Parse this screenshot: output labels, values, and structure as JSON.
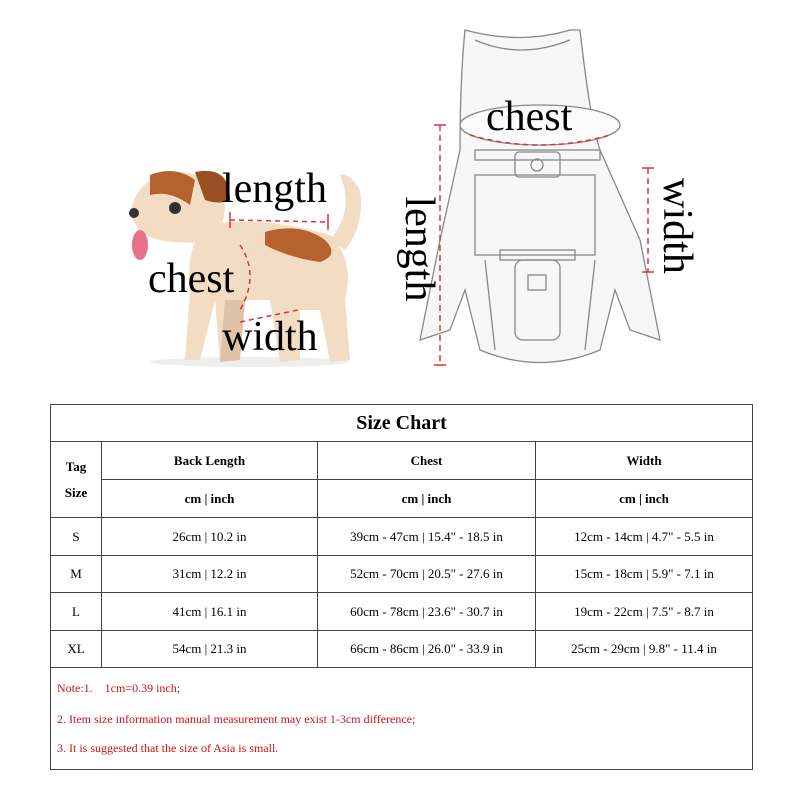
{
  "illustrations": {
    "dog_labels": {
      "length": "length",
      "chest": "chest",
      "width": "width"
    },
    "backpack_labels": {
      "chest": "chest",
      "length": "length",
      "width": "width"
    },
    "measure_line_color": "#e0303a"
  },
  "size_chart": {
    "title": "Size Chart",
    "tag_header": [
      "Tag",
      "Size"
    ],
    "columns": [
      "Back Length",
      "Chest",
      "Width"
    ],
    "unit_label": "cm | inch",
    "rows": [
      {
        "size": "S",
        "back_length": "26cm | 10.2 in",
        "chest": "39cm - 47cm | 15.4\" - 18.5 in",
        "width": "12cm - 14cm | 4.7\" - 5.5 in"
      },
      {
        "size": "M",
        "back_length": "31cm | 12.2 in",
        "chest": "52cm - 70cm | 20.5\" - 27.6 in",
        "width": "15cm - 18cm | 5.9\" - 7.1 in"
      },
      {
        "size": "L",
        "back_length": "41cm | 16.1 in",
        "chest": "60cm - 78cm | 23.6\" - 30.7 in",
        "width": "19cm - 22cm | 7.5\" - 8.7 in"
      },
      {
        "size": "XL",
        "back_length": "54cm | 21.3 in",
        "chest": "66cm - 86cm | 26.0\" - 33.9 in",
        "width": "25cm - 29cm | 9.8\" - 11.4 in"
      }
    ],
    "notes": [
      "Note:1.    1cm=0.39 inch;",
      "2.  Item size information manual measurement may exist 1-3cm difference;",
      "3.  It is suggested that the size of Asia is small."
    ],
    "note_color": "#d01010"
  }
}
